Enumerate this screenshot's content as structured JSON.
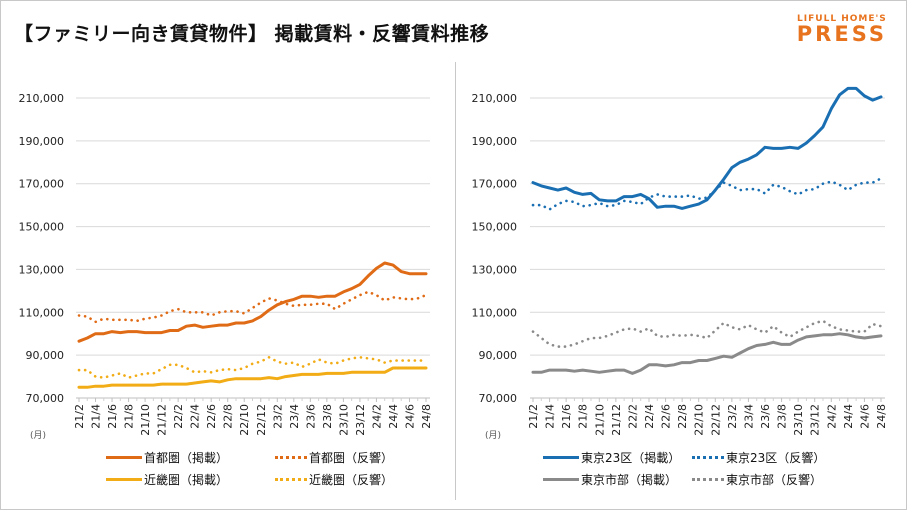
{
  "header": {
    "title": "【ファミリー向き賃貸物件】 掲載賃料・反響賃料推移",
    "logo_line1": "LIFULL HOME'S",
    "logo_line2": "PRESS",
    "brand_color": "#e8731e"
  },
  "chart_data": [
    {
      "type": "line",
      "title": "",
      "xlabel": "(月)",
      "ylabel": "",
      "ylim": [
        70000,
        210000
      ],
      "yticks": [
        "70,000",
        "90,000",
        "110,000",
        "130,000",
        "150,000",
        "170,000",
        "190,000",
        "210,000"
      ],
      "ytick_values": [
        70000,
        90000,
        110000,
        130000,
        150000,
        170000,
        190000,
        210000
      ],
      "grid": true,
      "legend_position": "bottom",
      "x_tick_labels": [
        "21/2",
        "21/4",
        "21/6",
        "21/8",
        "21/10",
        "21/12",
        "22/2",
        "22/4",
        "22/6",
        "22/8",
        "22/10",
        "22/12",
        "23/2",
        "23/4",
        "23/6",
        "23/8",
        "23/10",
        "23/12",
        "24/2",
        "24/4",
        "24/6",
        "24/8"
      ],
      "x": [
        "21/2",
        "21/3",
        "21/4",
        "21/5",
        "21/6",
        "21/7",
        "21/8",
        "21/9",
        "21/10",
        "21/11",
        "21/12",
        "22/1",
        "22/2",
        "22/3",
        "22/4",
        "22/5",
        "22/6",
        "22/7",
        "22/8",
        "22/9",
        "22/10",
        "22/11",
        "22/12",
        "23/1",
        "23/2",
        "23/3",
        "23/4",
        "23/5",
        "23/6",
        "23/7",
        "23/8",
        "23/9",
        "23/10",
        "23/11",
        "23/12",
        "24/1",
        "24/2",
        "24/3",
        "24/4",
        "24/5",
        "24/6",
        "24/7",
        "24/8"
      ],
      "series": [
        {
          "name": "首都圏（掲載）",
          "style": "solid",
          "color": "#e06b16",
          "values": [
            96500,
            98000,
            100000,
            100000,
            101000,
            100500,
            101000,
            101000,
            100500,
            100500,
            100500,
            101500,
            101500,
            103500,
            104000,
            103000,
            103500,
            104000,
            104000,
            105000,
            105000,
            106000,
            108000,
            111000,
            113500,
            115000,
            116000,
            117500,
            117500,
            117000,
            117500,
            117500,
            119500,
            121000,
            123000,
            127000,
            130500,
            133000,
            132000,
            129000,
            128000,
            128000,
            128000
          ]
        },
        {
          "name": "首都圏（反響）",
          "style": "dotted",
          "color": "#e06b16",
          "values": [
            108500,
            108000,
            105500,
            107000,
            106500,
            106500,
            106500,
            106000,
            107000,
            107500,
            108500,
            110500,
            111500,
            110000,
            110000,
            110000,
            108500,
            110000,
            110500,
            110500,
            109500,
            112000,
            114500,
            116500,
            115500,
            114000,
            113000,
            113500,
            113500,
            114000,
            114000,
            111500,
            114000,
            116000,
            118000,
            119500,
            118000,
            115500,
            117000,
            116500,
            116000,
            116500,
            118000
          ]
        },
        {
          "name": "近畿圏（掲載）",
          "style": "solid",
          "color": "#f2ac16",
          "values": [
            75000,
            75000,
            75500,
            75500,
            76000,
            76000,
            76000,
            76000,
            76000,
            76000,
            76500,
            76500,
            76500,
            76500,
            77000,
            77500,
            78000,
            77500,
            78500,
            79000,
            79000,
            79000,
            79000,
            79500,
            79000,
            80000,
            80500,
            81000,
            81000,
            81000,
            81500,
            81500,
            81500,
            82000,
            82000,
            82000,
            82000,
            82000,
            84000,
            84000,
            84000,
            84000,
            84000
          ]
        },
        {
          "name": "近畿圏（反響）",
          "style": "dotted",
          "color": "#f2ac16",
          "values": [
            83000,
            83000,
            80000,
            79500,
            80500,
            81500,
            79500,
            80500,
            81500,
            81500,
            83500,
            85500,
            85500,
            84000,
            82000,
            82500,
            82000,
            83000,
            83500,
            83000,
            84000,
            86000,
            87000,
            89000,
            87000,
            86000,
            86500,
            84500,
            86000,
            88000,
            86500,
            86000,
            87500,
            88500,
            89000,
            88500,
            88000,
            86500,
            87500,
            87500,
            87500,
            87500,
            87500
          ]
        }
      ]
    },
    {
      "type": "line",
      "title": "",
      "xlabel": "(月)",
      "ylabel": "",
      "ylim": [
        70000,
        210000
      ],
      "yticks": [
        "70,000",
        "90,000",
        "110,000",
        "130,000",
        "150,000",
        "170,000",
        "190,000",
        "210,000"
      ],
      "ytick_values": [
        70000,
        90000,
        110000,
        130000,
        150000,
        170000,
        190000,
        210000
      ],
      "grid": true,
      "legend_position": "bottom",
      "x_tick_labels": [
        "21/2",
        "21/4",
        "21/6",
        "21/8",
        "21/10",
        "21/12",
        "22/2",
        "22/4",
        "22/6",
        "22/8",
        "22/10",
        "22/12",
        "23/2",
        "23/4",
        "23/6",
        "23/8",
        "23/10",
        "23/12",
        "24/2",
        "24/4",
        "24/6",
        "24/8"
      ],
      "x": [
        "21/2",
        "21/3",
        "21/4",
        "21/5",
        "21/6",
        "21/7",
        "21/8",
        "21/9",
        "21/10",
        "21/11",
        "21/12",
        "22/1",
        "22/2",
        "22/3",
        "22/4",
        "22/5",
        "22/6",
        "22/7",
        "22/8",
        "22/9",
        "22/10",
        "22/11",
        "22/12",
        "23/1",
        "23/2",
        "23/3",
        "23/4",
        "23/5",
        "23/6",
        "23/7",
        "23/8",
        "23/9",
        "23/10",
        "23/11",
        "23/12",
        "24/1",
        "24/2",
        "24/3",
        "24/4",
        "24/5",
        "24/6",
        "24/7",
        "24/8"
      ],
      "series": [
        {
          "name": "東京23区（掲載）",
          "style": "solid",
          "color": "#1a6fb3",
          "values": [
            170500,
            169000,
            168000,
            167000,
            168000,
            166000,
            165000,
            165500,
            162500,
            162000,
            162000,
            164000,
            164000,
            165000,
            163000,
            159000,
            159500,
            159500,
            158500,
            159500,
            160500,
            162500,
            167000,
            172000,
            177500,
            180000,
            181500,
            183500,
            187000,
            186500,
            186500,
            187000,
            186500,
            189000,
            192500,
            196500,
            205000,
            211500,
            214500,
            214500,
            211000,
            209000,
            210500
          ]
        },
        {
          "name": "東京23区（反響）",
          "style": "dotted",
          "color": "#1a6fb3",
          "values": [
            160000,
            160000,
            158000,
            160500,
            162000,
            161500,
            159500,
            160000,
            161000,
            159500,
            160000,
            162000,
            161500,
            160500,
            163500,
            165000,
            164000,
            164000,
            164000,
            164500,
            163000,
            163500,
            167000,
            170500,
            169000,
            167000,
            167500,
            167500,
            165500,
            169500,
            168500,
            166500,
            165000,
            167000,
            167500,
            170000,
            171000,
            169500,
            167000,
            169500,
            170500,
            170500,
            172500
          ]
        },
        {
          "name": "東京市部（掲載）",
          "style": "solid",
          "color": "#8a8a8a",
          "values": [
            82000,
            82000,
            83000,
            83000,
            83000,
            82500,
            83000,
            82500,
            82000,
            82500,
            83000,
            83000,
            81500,
            83000,
            85500,
            85500,
            85000,
            85500,
            86500,
            86500,
            87500,
            87500,
            88500,
            89500,
            89000,
            91000,
            93000,
            94500,
            95000,
            96000,
            95000,
            95000,
            97000,
            98500,
            99000,
            99500,
            99500,
            100000,
            99500,
            98500,
            98000,
            98500,
            99000
          ]
        },
        {
          "name": "東京市部（反響）",
          "style": "dotted",
          "color": "#8a8a8a",
          "values": [
            101000,
            98000,
            95000,
            94000,
            94000,
            95000,
            96500,
            98000,
            98000,
            99000,
            100500,
            102000,
            102500,
            101000,
            102500,
            99000,
            98500,
            99500,
            99000,
            99500,
            99000,
            98000,
            101500,
            105000,
            103000,
            102000,
            104000,
            102000,
            100500,
            103500,
            100500,
            98500,
            101000,
            103000,
            105000,
            106000,
            103500,
            102000,
            101500,
            101000,
            101000,
            104500,
            103500
          ]
        }
      ]
    }
  ]
}
